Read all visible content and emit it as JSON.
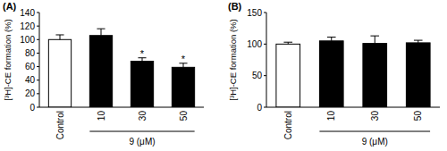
{
  "chart_data": [
    {
      "type": "bar",
      "title": "(A)",
      "ylabel": "[³H]-CE formation (%)",
      "xlabel": "9 (μM)",
      "categories": [
        "Control",
        "10",
        "30",
        "50"
      ],
      "values": [
        100,
        106,
        68,
        59
      ],
      "errors": [
        7,
        10,
        5,
        6
      ],
      "colors": [
        "#ffffff",
        "#000000",
        "#000000",
        "#000000"
      ],
      "ylim": [
        0,
        140
      ],
      "yticks": [
        0,
        20,
        40,
        60,
        80,
        100,
        120,
        140
      ],
      "annotations": [
        {
          "text": "*",
          "category": "30"
        },
        {
          "text": "*",
          "category": "50"
        }
      ]
    },
    {
      "type": "bar",
      "title": "(B)",
      "ylabel": "[³H]-CE formation (%)",
      "xlabel": "9 (μM)",
      "categories": [
        "Control",
        "10",
        "30",
        "50"
      ],
      "values": [
        100,
        105,
        101,
        102
      ],
      "errors": [
        3,
        6,
        12,
        4
      ],
      "colors": [
        "#ffffff",
        "#000000",
        "#000000",
        "#000000"
      ],
      "ylim": [
        0,
        150
      ],
      "yticks": [
        0,
        50,
        100,
        150
      ]
    }
  ]
}
